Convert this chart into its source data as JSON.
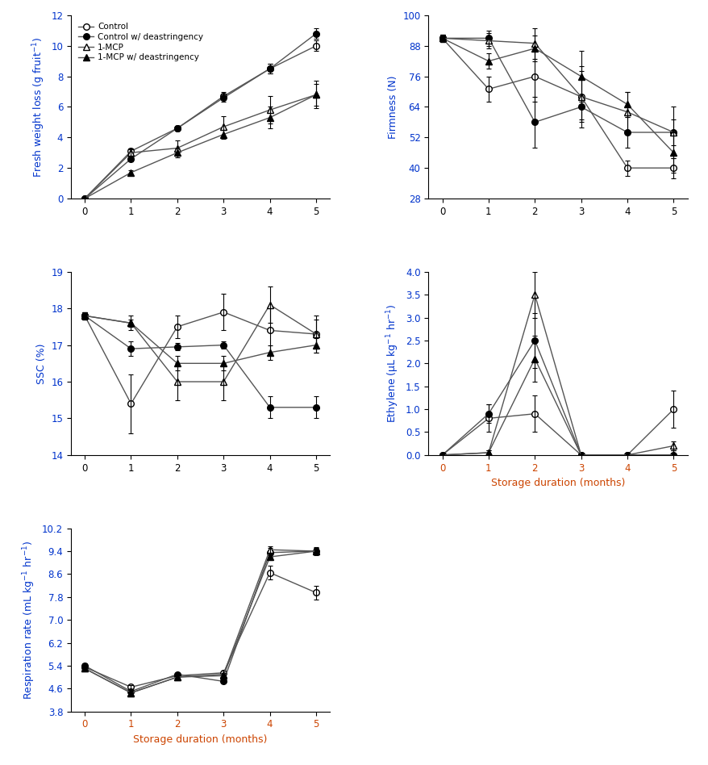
{
  "x": [
    0,
    1,
    2,
    3,
    4,
    5
  ],
  "fresh_weight_loss": {
    "control": [
      0,
      3.1,
      4.6,
      6.7,
      8.5,
      10.0
    ],
    "control_dea": [
      0,
      2.6,
      4.6,
      6.6,
      8.5,
      10.8
    ],
    "mcp": [
      0,
      3.0,
      3.3,
      4.7,
      5.8,
      6.8
    ],
    "mcp_dea": [
      0,
      1.7,
      3.0,
      4.2,
      5.3,
      6.8
    ],
    "control_err": [
      0,
      0.15,
      0.15,
      0.25,
      0.3,
      0.35
    ],
    "control_dea_err": [
      0,
      0.15,
      0.15,
      0.25,
      0.3,
      0.35
    ],
    "mcp_err": [
      0,
      0.2,
      0.5,
      0.7,
      0.9,
      0.9
    ],
    "mcp_dea_err": [
      0,
      0.15,
      0.3,
      0.3,
      0.7,
      0.7
    ]
  },
  "firmness": {
    "control": [
      91,
      71,
      76,
      68,
      40,
      40
    ],
    "control_dea": [
      91,
      91,
      58,
      64,
      54,
      54
    ],
    "mcp": [
      91,
      90,
      89,
      68,
      62,
      54
    ],
    "mcp_dea": [
      91,
      82,
      87,
      76,
      65,
      46
    ],
    "control_err": [
      1.5,
      5,
      10,
      10,
      3,
      4
    ],
    "control_dea_err": [
      1.5,
      3,
      10,
      5,
      6,
      5
    ],
    "mcp_err": [
      1.5,
      3,
      6,
      12,
      8,
      10
    ],
    "mcp_dea_err": [
      1.5,
      3,
      5,
      10,
      5,
      8
    ]
  },
  "ssc": {
    "control": [
      17.8,
      15.4,
      17.5,
      17.9,
      17.4,
      17.3
    ],
    "control_dea": [
      17.8,
      16.9,
      16.95,
      17.0,
      15.3,
      15.3
    ],
    "mcp": [
      17.8,
      17.6,
      16.0,
      16.0,
      18.1,
      17.3
    ],
    "mcp_dea": [
      17.8,
      17.6,
      16.5,
      16.5,
      16.8,
      17.0
    ],
    "control_err": [
      0.1,
      0.8,
      0.3,
      0.5,
      0.6,
      0.4
    ],
    "control_dea_err": [
      0.1,
      0.2,
      0.1,
      0.1,
      0.3,
      0.3
    ],
    "mcp_err": [
      0.1,
      0.2,
      0.5,
      0.5,
      0.5,
      0.5
    ],
    "mcp_dea_err": [
      0.1,
      0.1,
      0.2,
      0.2,
      0.2,
      0.2
    ]
  },
  "ethylene": {
    "control": [
      0.0,
      0.8,
      0.9,
      0.0,
      0.0,
      1.0
    ],
    "control_dea": [
      0.0,
      0.9,
      2.5,
      0.0,
      0.0,
      0.0
    ],
    "mcp": [
      0.0,
      0.05,
      3.5,
      0.0,
      0.0,
      0.2
    ],
    "mcp_dea": [
      0.0,
      0.05,
      2.1,
      0.0,
      0.0,
      0.0
    ],
    "control_err": [
      0,
      0.3,
      0.4,
      0,
      0,
      0.4
    ],
    "control_dea_err": [
      0,
      0.2,
      0.6,
      0,
      0,
      0.1
    ],
    "mcp_err": [
      0,
      0.05,
      0.5,
      0,
      0,
      0.1
    ],
    "mcp_dea_err": [
      0,
      0.05,
      0.5,
      0,
      0,
      0.1
    ]
  },
  "respiration": {
    "control": [
      5.35,
      4.65,
      5.05,
      5.15,
      8.65,
      7.95
    ],
    "control_dea": [
      5.4,
      4.5,
      5.1,
      4.85,
      9.35,
      9.4
    ],
    "mcp": [
      5.3,
      4.45,
      5.0,
      5.1,
      9.45,
      9.4
    ],
    "mcp_dea": [
      5.3,
      4.45,
      5.0,
      5.05,
      9.2,
      9.4
    ],
    "control_err": [
      0.07,
      0.08,
      0.07,
      0.07,
      0.25,
      0.25
    ],
    "control_dea_err": [
      0.07,
      0.05,
      0.05,
      0.05,
      0.15,
      0.15
    ],
    "mcp_err": [
      0.07,
      0.05,
      0.05,
      0.05,
      0.12,
      0.12
    ],
    "mcp_dea_err": [
      0.07,
      0.05,
      0.05,
      0.05,
      0.12,
      0.12
    ]
  },
  "axis_label_color": "#0033cc",
  "tick_label_color": "#000000",
  "xlabel_color": "#cc4400",
  "line_color": "#555555",
  "legend_labels": [
    "Control",
    "Control w/ deastringency",
    "1-MCP",
    "1-MCP w/ deastringency"
  ]
}
